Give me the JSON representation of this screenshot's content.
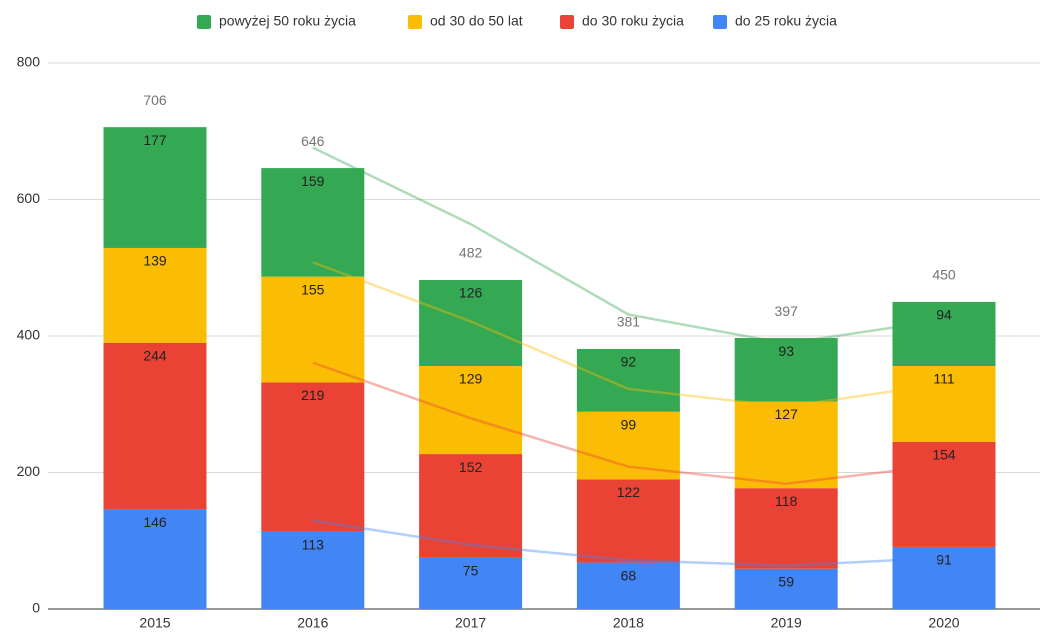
{
  "chart_data": {
    "type": "stacked_bar",
    "categories": [
      "2015",
      "2016",
      "2017",
      "2018",
      "2019",
      "2020"
    ],
    "series": [
      {
        "name": "powyżej 50 roku życia",
        "color": "#34a853",
        "values": [
          177,
          159,
          126,
          92,
          93,
          94
        ]
      },
      {
        "name": "od 30 do 50 lat",
        "color": "#fbbc04",
        "values": [
          139,
          155,
          129,
          99,
          127,
          111
        ]
      },
      {
        "name": "do 30 roku życia",
        "color": "#ea4335",
        "values": [
          244,
          219,
          152,
          122,
          118,
          154
        ]
      },
      {
        "name": "do 25 roku życia",
        "color": "#4285f4",
        "values": [
          146,
          113,
          75,
          68,
          59,
          91
        ]
      }
    ],
    "totals": [
      706,
      646,
      482,
      381,
      397,
      450
    ],
    "ylim": [
      0,
      800
    ],
    "yticks": [
      0,
      200,
      400,
      600,
      800
    ],
    "grid": true,
    "legend": "top",
    "trendline": "moving_average",
    "trendline_period": 2
  }
}
